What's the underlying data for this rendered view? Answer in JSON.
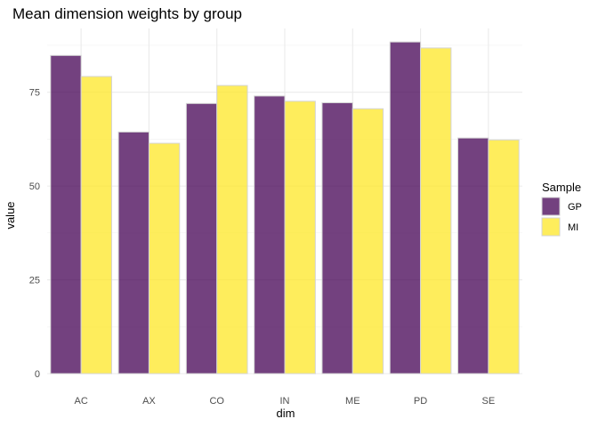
{
  "chart_data": {
    "type": "bar",
    "title": "Mean dimension weights by group",
    "xlabel": "dim",
    "ylabel": "value",
    "categories": [
      "AC",
      "AX",
      "CO",
      "IN",
      "ME",
      "PD",
      "SE"
    ],
    "series": [
      {
        "name": "GP",
        "color": "#440154",
        "values": [
          84.8,
          64.4,
          72.0,
          74.0,
          72.2,
          88.4,
          62.8
        ]
      },
      {
        "name": "MI",
        "color": "#FDE725",
        "values": [
          79.2,
          61.4,
          76.8,
          72.6,
          70.6,
          86.8,
          62.3
        ]
      }
    ],
    "ylim": [
      0,
      92
    ],
    "yticks": [
      0,
      25,
      50,
      75
    ],
    "grid": true,
    "legend": {
      "title": "Sample",
      "position": "right"
    }
  }
}
